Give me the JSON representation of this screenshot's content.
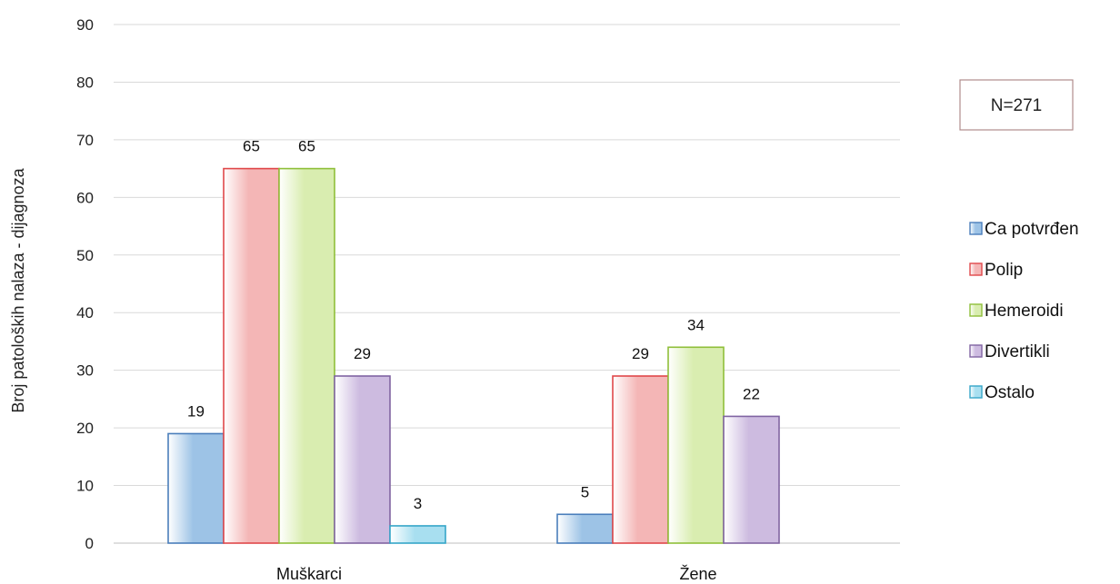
{
  "chart_data": {
    "type": "bar",
    "ylabel": "Broj patoloških nalaza - dijagnoza",
    "xlabel": "",
    "ylim": [
      0,
      90
    ],
    "yticks": [
      0,
      10,
      20,
      30,
      40,
      50,
      60,
      70,
      80,
      90
    ],
    "categories": [
      "Muškarci",
      "Žene"
    ],
    "series": [
      {
        "name": "Ca potvrđen",
        "values": [
          19,
          5
        ],
        "color": "#9dc3e6",
        "stroke": "#4a7ebb"
      },
      {
        "name": "Polip",
        "values": [
          65,
          29
        ],
        "color": "#f4b6b6",
        "stroke": "#e0484a"
      },
      {
        "name": "Hemeroidi",
        "values": [
          65,
          34
        ],
        "color": "#d9edb0",
        "stroke": "#8fbf3a"
      },
      {
        "name": "Divertikli",
        "values": [
          29,
          22
        ],
        "color": "#cdbbe0",
        "stroke": "#8064a2"
      },
      {
        "name": "Ostalo",
        "values": [
          3,
          null
        ],
        "color": "#a8dff0",
        "stroke": "#35a6c8"
      }
    ],
    "grid": true,
    "legend_position": "right",
    "annotation": "N=271"
  }
}
